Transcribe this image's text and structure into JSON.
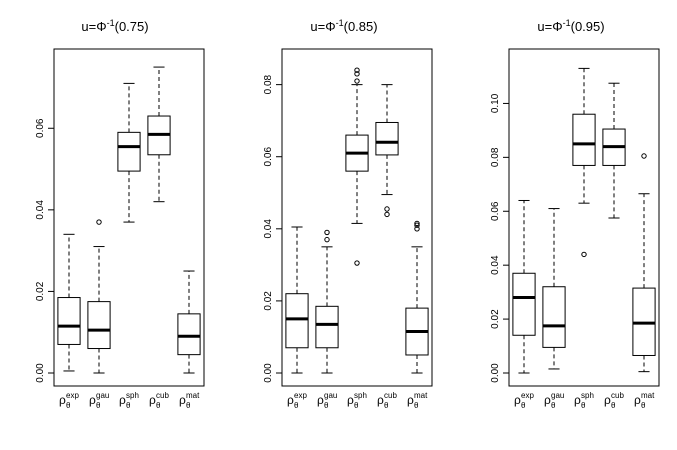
{
  "chart_data": [
    {
      "type": "boxplot",
      "title": {
        "prefix": "u=",
        "phi": "Φ",
        "sup": "-1",
        "arg": "(0.75)"
      },
      "ylim": [
        0,
        0.076
      ],
      "yticks": [
        0.0,
        0.02,
        0.04,
        0.06
      ],
      "ytick_labels": [
        "0.00",
        "0.02",
        "0.04",
        "0.06"
      ],
      "categories": [
        {
          "base": "ρ",
          "sub": "θ",
          "sup": "exp"
        },
        {
          "base": "ρ",
          "sub": "θ",
          "sup": "gau"
        },
        {
          "base": "ρ",
          "sub": "θ",
          "sup": "sph"
        },
        {
          "base": "ρ",
          "sub": "θ",
          "sup": "cub"
        },
        {
          "base": "ρ",
          "sub": "θ",
          "sup": "mat"
        }
      ],
      "boxes": [
        {
          "whisker_low": 0.0005,
          "q1": 0.007,
          "median": 0.0115,
          "q3": 0.0185,
          "whisker_high": 0.034,
          "outliers": []
        },
        {
          "whisker_low": 0.0,
          "q1": 0.006,
          "median": 0.0105,
          "q3": 0.0175,
          "whisker_high": 0.031,
          "outliers": [
            0.037
          ]
        },
        {
          "whisker_low": 0.037,
          "q1": 0.0495,
          "median": 0.0555,
          "q3": 0.059,
          "whisker_high": 0.071,
          "outliers": []
        },
        {
          "whisker_low": 0.042,
          "q1": 0.0535,
          "median": 0.0585,
          "q3": 0.063,
          "whisker_high": 0.075,
          "outliers": []
        },
        {
          "whisker_low": 0.0,
          "q1": 0.0045,
          "median": 0.009,
          "q3": 0.0145,
          "whisker_high": 0.025,
          "outliers": []
        }
      ]
    },
    {
      "type": "boxplot",
      "title": {
        "prefix": "u=",
        "phi": "Φ",
        "sup": "-1",
        "arg": "(0.85)"
      },
      "ylim": [
        0,
        0.086
      ],
      "yticks": [
        0.0,
        0.02,
        0.04,
        0.06,
        0.08
      ],
      "ytick_labels": [
        "0.00",
        "0.02",
        "0.04",
        "0.06",
        "0.08"
      ],
      "categories": [
        {
          "base": "ρ",
          "sub": "θ",
          "sup": "exp"
        },
        {
          "base": "ρ",
          "sub": "θ",
          "sup": "gau"
        },
        {
          "base": "ρ",
          "sub": "θ",
          "sup": "sph"
        },
        {
          "base": "ρ",
          "sub": "θ",
          "sup": "cub"
        },
        {
          "base": "ρ",
          "sub": "θ",
          "sup": "mat"
        }
      ],
      "boxes": [
        {
          "whisker_low": 0.0,
          "q1": 0.007,
          "median": 0.015,
          "q3": 0.022,
          "whisker_high": 0.0405,
          "outliers": []
        },
        {
          "whisker_low": 0.0,
          "q1": 0.007,
          "median": 0.0135,
          "q3": 0.0185,
          "whisker_high": 0.035,
          "outliers": [
            0.037,
            0.039
          ]
        },
        {
          "whisker_low": 0.0415,
          "q1": 0.056,
          "median": 0.061,
          "q3": 0.066,
          "whisker_high": 0.08,
          "outliers": [
            0.0305,
            0.081,
            0.083,
            0.084
          ]
        },
        {
          "whisker_low": 0.0495,
          "q1": 0.0605,
          "median": 0.064,
          "q3": 0.0695,
          "whisker_high": 0.08,
          "outliers": [
            0.044,
            0.0455
          ]
        },
        {
          "whisker_low": 0.0,
          "q1": 0.005,
          "median": 0.0115,
          "q3": 0.018,
          "whisker_high": 0.035,
          "outliers": [
            0.04,
            0.041,
            0.0415
          ]
        }
      ]
    },
    {
      "type": "boxplot",
      "title": {
        "prefix": "u=",
        "phi": "Φ",
        "sup": "-1",
        "arg": "(0.95)"
      },
      "ylim": [
        0,
        0.115
      ],
      "yticks": [
        0.0,
        0.02,
        0.04,
        0.06,
        0.08,
        0.1
      ],
      "ytick_labels": [
        "0.00",
        "0.02",
        "0.04",
        "0.06",
        "0.08",
        "0.10"
      ],
      "categories": [
        {
          "base": "ρ",
          "sub": "θ",
          "sup": "exp"
        },
        {
          "base": "ρ",
          "sub": "θ",
          "sup": "gau"
        },
        {
          "base": "ρ",
          "sub": "θ",
          "sup": "sph"
        },
        {
          "base": "ρ",
          "sub": "θ",
          "sup": "cub"
        },
        {
          "base": "ρ",
          "sub": "θ",
          "sup": "mat"
        }
      ],
      "boxes": [
        {
          "whisker_low": 0.0,
          "q1": 0.014,
          "median": 0.028,
          "q3": 0.037,
          "whisker_high": 0.064,
          "outliers": []
        },
        {
          "whisker_low": 0.0015,
          "q1": 0.0095,
          "median": 0.0175,
          "q3": 0.032,
          "whisker_high": 0.061,
          "outliers": []
        },
        {
          "whisker_low": 0.063,
          "q1": 0.077,
          "median": 0.085,
          "q3": 0.096,
          "whisker_high": 0.113,
          "outliers": [
            0.044
          ]
        },
        {
          "whisker_low": 0.0575,
          "q1": 0.077,
          "median": 0.084,
          "q3": 0.0905,
          "whisker_high": 0.1075,
          "outliers": []
        },
        {
          "whisker_low": 0.0005,
          "q1": 0.0065,
          "median": 0.0185,
          "q3": 0.0315,
          "whisker_high": 0.0665,
          "outliers": [
            0.0805
          ]
        }
      ]
    }
  ]
}
